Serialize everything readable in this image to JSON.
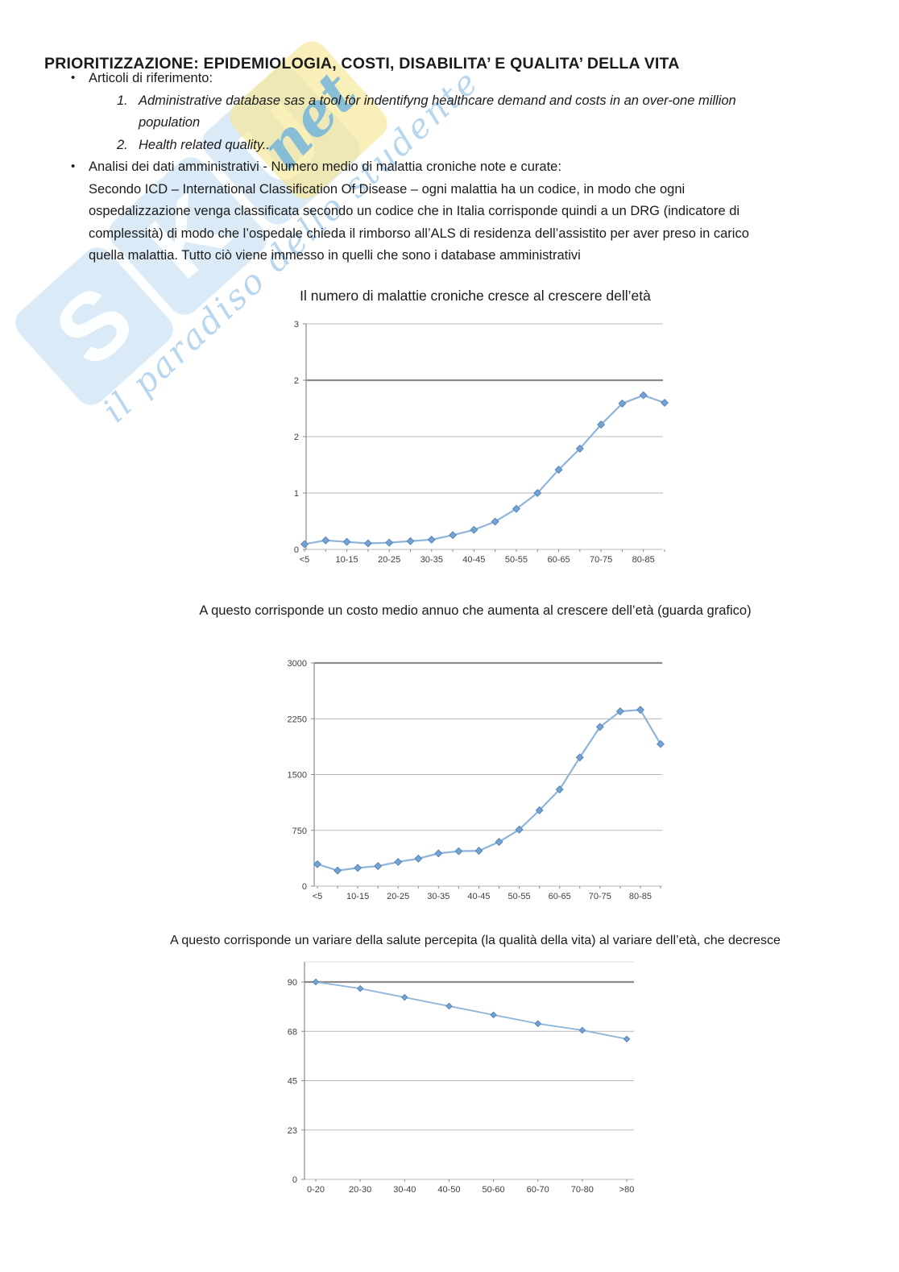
{
  "page": {
    "background": "#ffffff"
  },
  "document": {
    "title": "PRIORITIZZAZIONE: EPIDEMIOLOGIA, COSTI, DISABILITA’ E QUALITA’ DELLA VITA",
    "lines": [
      {
        "marker": "•",
        "text": "Articoli di riferimento:"
      },
      {
        "marker": "1.",
        "text": "Administrative database sas a tool for indentifyng healthcare demand and costs in an over-one million"
      },
      {
        "marker": "",
        "text": "population"
      },
      {
        "marker": "2.",
        "text": "Health related quality.."
      },
      {
        "marker": "•",
        "text": "Analisi dei dati amministrativi - Numero medio di malattia croniche note e curate:"
      },
      {
        "marker": "",
        "text": "Secondo ICD – International Classification Of Disease – ogni malattia ha un codice, in modo che ogni"
      },
      {
        "marker": "",
        "text": "ospedalizzazione venga classificata secondo un codice che in Italia corrisponde quindi a un DRG (indicatore di"
      },
      {
        "marker": "",
        "text": "complessità) di modo che l’ospedale chieda il rimborso all’ALS di residenza dell’assistito per aver preso in carico"
      },
      {
        "marker": "",
        "text": "quella malattia. Tutto ciò viene immesso in quelli che sono i database amministrativi"
      }
    ]
  },
  "watermark": {
    "letters": [
      "S",
      "K",
      "U"
    ],
    "net_label": "net",
    "caption": "il paradiso dello studente",
    "tile_blue": "#a7ceec",
    "tile_yellow": "#f6e896",
    "caption_blue": "#7eb7e2"
  },
  "chart_data": [
    {
      "type": "line",
      "title": "Il numero di malattie croniche cresce al crescere dell’età",
      "categories": [
        "<5",
        "5-10",
        "10-15",
        "15-20",
        "20-25",
        "25-30",
        "30-35",
        "35-40",
        "40-45",
        "45-50",
        "50-55",
        "55-60",
        "60-65",
        "65-70",
        "70-75",
        "75-80",
        "80-85",
        ">85"
      ],
      "x_tick_labels": [
        "<5",
        "10-15",
        "20-25",
        "30-35",
        "40-45",
        "50-55",
        "60-65",
        "70-75",
        "80-85"
      ],
      "values": [
        0.07,
        0.12,
        0.1,
        0.08,
        0.09,
        0.11,
        0.13,
        0.19,
        0.26,
        0.37,
        0.54,
        0.75,
        1.06,
        1.34,
        1.66,
        1.94,
        2.05,
        1.95
      ],
      "y_tick_labels": [
        "0",
        "1",
        "2",
        "2",
        "3"
      ],
      "ylim": [
        0,
        3
      ],
      "xlabel": "",
      "ylabel": "",
      "grid": true,
      "legend": false,
      "marker": "diamond",
      "line_color": "#8fb4da",
      "marker_color": "#76a3d1",
      "marker_stroke": "#5585bb"
    },
    {
      "type": "line",
      "title": "A questo corrisponde un costo medio annuo che aumenta al crescere dell’età (guarda grafico)",
      "categories": [
        "<5",
        "5-10",
        "10-15",
        "15-20",
        "20-25",
        "25-30",
        "30-35",
        "35-40",
        "40-45",
        "45-50",
        "50-55",
        "55-60",
        "60-65",
        "65-70",
        "70-75",
        "75-80",
        "80-85",
        ">85"
      ],
      "x_tick_labels": [
        "<5",
        "10-15",
        "20-25",
        "30-35",
        "40-45",
        "50-55",
        "60-65",
        "70-75",
        "80-85"
      ],
      "values": [
        295,
        210,
        245,
        270,
        325,
        370,
        440,
        470,
        475,
        595,
        760,
        1020,
        1300,
        1730,
        2140,
        2350,
        2370,
        1910
      ],
      "y_tick_labels": [
        "0",
        "750",
        "1500",
        "2250",
        "3000"
      ],
      "ylim": [
        0,
        3000
      ],
      "xlabel": "",
      "ylabel": "",
      "grid": true,
      "legend": false,
      "marker": "diamond",
      "line_color": "#8fb4da",
      "marker_color": "#76a3d1",
      "marker_stroke": "#5585bb"
    },
    {
      "type": "line",
      "title": "A questo corrisponde un variare della salute percepita (la qualità della vita) al variare dell’età, che decresce",
      "categories": [
        "0-20",
        "20-30",
        "30-40",
        "40-50",
        "50-60",
        "60-70",
        "70-80",
        ">80"
      ],
      "x_tick_labels": [
        "0-20",
        "20-30",
        "30-40",
        "40-50",
        "50-60",
        "60-70",
        "70-80",
        ">80"
      ],
      "values": [
        90,
        87,
        83,
        79,
        75,
        71,
        68,
        64
      ],
      "y_tick_labels": [
        "0",
        "23",
        "45",
        "68",
        "90"
      ],
      "ylim": [
        0,
        90
      ],
      "xlabel": "",
      "ylabel": "",
      "grid": true,
      "legend": false,
      "marker": "diamond",
      "line_color": "#8fb4da",
      "marker_color": "#76a3d1",
      "marker_stroke": "#5585bb"
    }
  ]
}
